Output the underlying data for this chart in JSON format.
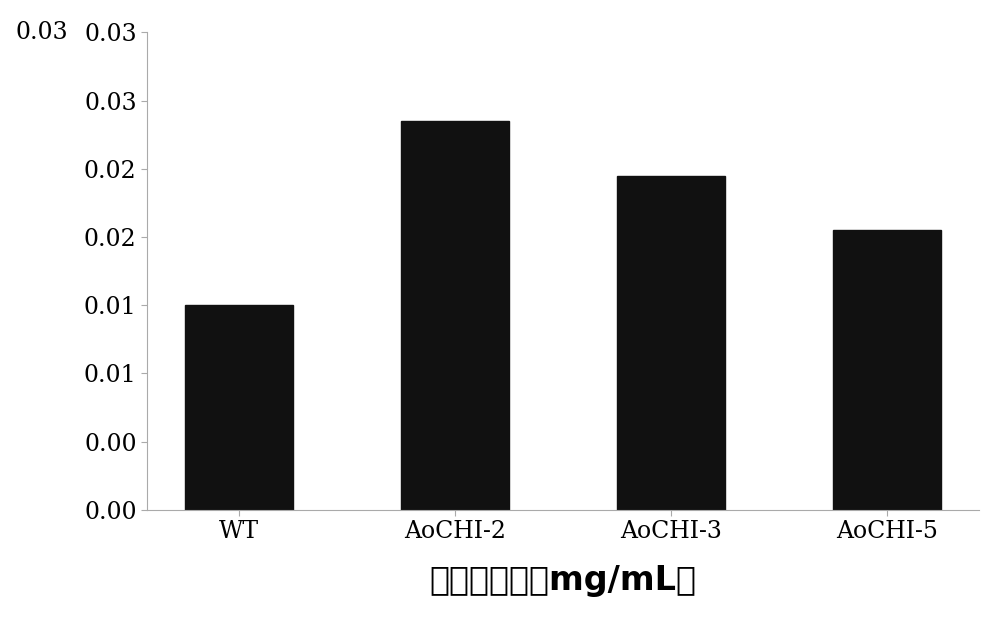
{
  "categories": [
    "WT",
    "AoCHI-2",
    "AoCHI-3",
    "AoCHI-5"
  ],
  "values": [
    0.015,
    0.0285,
    0.0245,
    0.0205
  ],
  "bar_color": "#111111",
  "xlabel": "总黄酮含量（mg/mL）",
  "ylabel": "",
  "ylim": [
    0,
    0.035
  ],
  "yticks": [
    0.0,
    0.005,
    0.01,
    0.015,
    0.02,
    0.025,
    0.03,
    0.035
  ],
  "bar_width": 0.5,
  "xlabel_fontsize": 24,
  "tick_fontsize": 17,
  "background_color": "#ffffff",
  "fig_width": 10.0,
  "fig_height": 6.18,
  "spine_color": "#aaaaaa",
  "spine_linewidth": 0.8
}
